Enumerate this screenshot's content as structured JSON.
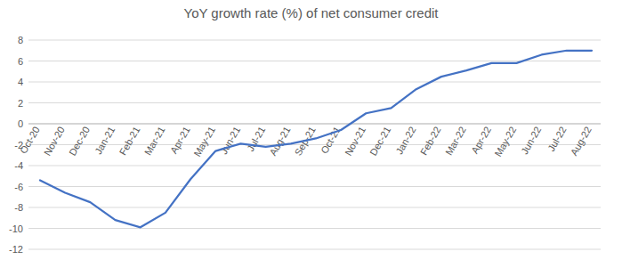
{
  "chart_data": {
    "type": "line",
    "title": "YoY growth rate (%) of net consumer credit",
    "categories": [
      "Oct-20",
      "Nov-20",
      "Dec-20",
      "Jan-21",
      "Feb-21",
      "Mar-21",
      "Apr-21",
      "May-21",
      "Jun-21",
      "Jul-21",
      "Aug-21",
      "Sep-21",
      "Oct-21",
      "Nov-21",
      "Dec-21",
      "Jan-22",
      "Feb-22",
      "Mar-22",
      "Apr-22",
      "May-22",
      "Jun-22",
      "Jul-22",
      "Aug-22"
    ],
    "values": [
      -5.4,
      -6.6,
      -7.5,
      -9.2,
      -9.9,
      -8.5,
      -5.3,
      -2.6,
      -1.9,
      -2.2,
      -1.9,
      -1.4,
      -0.6,
      1.0,
      1.5,
      3.3,
      4.5,
      5.1,
      5.8,
      5.8,
      6.6,
      7.0,
      7.0
    ],
    "color": "#4472c4",
    "ylim": [
      -12,
      8
    ],
    "yticks": [
      -12,
      -10,
      -8,
      -6,
      -4,
      -2,
      0,
      2,
      4,
      6,
      8
    ],
    "grid": true
  }
}
